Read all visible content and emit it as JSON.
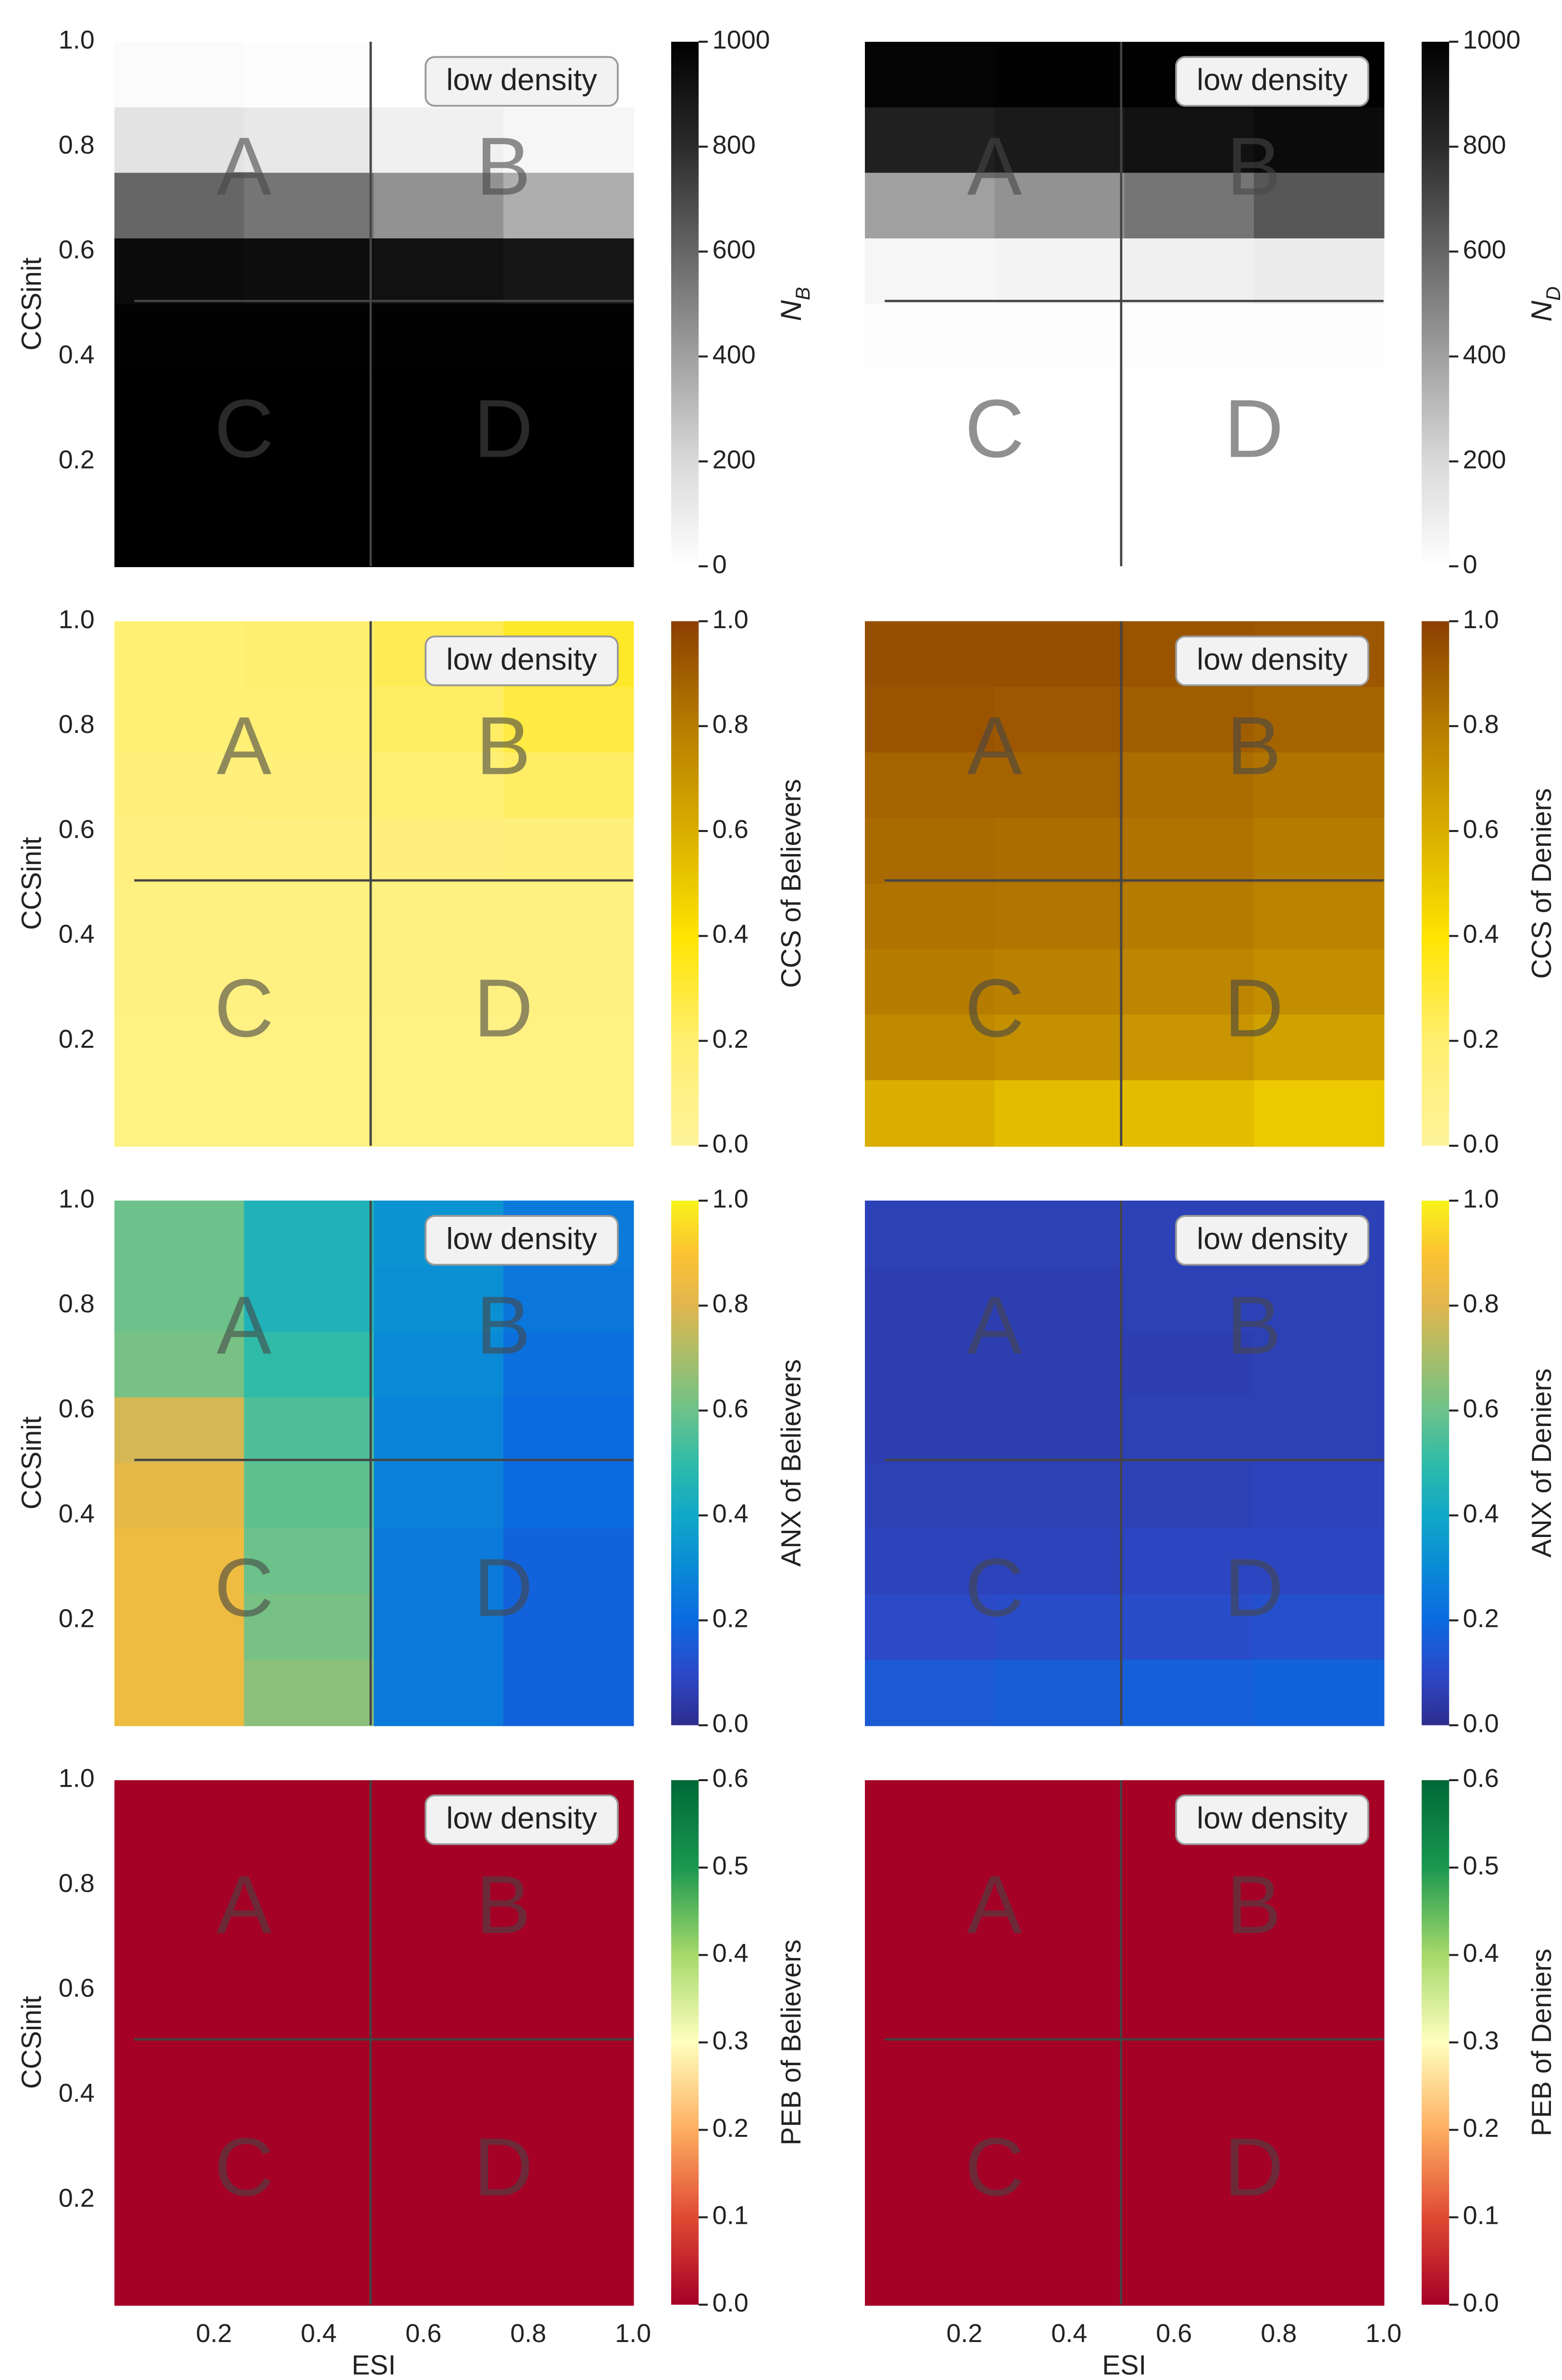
{
  "chart_data": [
    {
      "type": "heatmap",
      "annotation": "low density",
      "regions": [
        "A",
        "B",
        "C",
        "D"
      ],
      "ylabel": "CCSinit",
      "xlim": [
        0.01,
        1
      ],
      "ylim": [
        0,
        1
      ],
      "yticks": [
        0.2,
        0.4,
        0.6,
        0.8,
        {
          "value": 1,
          "label": "1.0"
        }
      ],
      "clim": [
        0,
        1000
      ],
      "cticks": [
        0,
        200,
        400,
        600,
        800,
        1000
      ],
      "colorbar_label": {
        "text": "N",
        "sub": "B"
      },
      "colormap": [
        "#ffffff",
        "#d9d9d9",
        "#a0a0a0",
        "#666666",
        "#2b2b2b",
        "#000000"
      ],
      "values": [
        [
          20,
          10,
          5,
          5
        ],
        [
          150,
          120,
          80,
          50
        ],
        [
          600,
          550,
          450,
          350
        ],
        [
          950,
          940,
          920,
          900
        ],
        [
          990,
          990,
          990,
          990
        ],
        [
          1000,
          1000,
          1000,
          1000
        ],
        [
          1000,
          1000,
          1000,
          1000
        ],
        [
          1000,
          1000,
          1000,
          1000
        ]
      ]
    },
    {
      "type": "heatmap",
      "annotation": "low density",
      "regions": [
        "A",
        "B",
        "C",
        "D"
      ],
      "xlim": [
        0.01,
        1
      ],
      "ylim": [
        0,
        1
      ],
      "clim": [
        0,
        1000
      ],
      "cticks": [
        0,
        200,
        400,
        600,
        800,
        1000
      ],
      "colorbar_label": {
        "text": "N",
        "sub": "D"
      },
      "colormap": [
        "#ffffff",
        "#d9d9d9",
        "#a0a0a0",
        "#666666",
        "#2b2b2b",
        "#000000"
      ],
      "values": [
        [
          980,
          990,
          995,
          995
        ],
        [
          850,
          880,
          920,
          950
        ],
        [
          400,
          450,
          550,
          650
        ],
        [
          50,
          60,
          80,
          100
        ],
        [
          10,
          10,
          10,
          10
        ],
        [
          0,
          0,
          0,
          0
        ],
        [
          0,
          0,
          0,
          0
        ],
        [
          0,
          0,
          0,
          0
        ]
      ]
    },
    {
      "type": "heatmap",
      "annotation": "low density",
      "regions": [
        "A",
        "B",
        "C",
        "D"
      ],
      "ylabel": "CCSinit",
      "xlim": [
        0.01,
        1
      ],
      "ylim": [
        0,
        1
      ],
      "yticks": [
        0.2,
        0.4,
        0.6,
        0.8,
        {
          "value": 1,
          "label": "1.0"
        }
      ],
      "clim": [
        0,
        1
      ],
      "cticks": [
        {
          "value": 0,
          "label": "0.0"
        },
        0.2,
        0.4,
        0.6,
        0.8,
        {
          "value": 1,
          "label": "1.0"
        }
      ],
      "colorbar_label": "CCS of Believers",
      "colormap": [
        "#fff39b",
        "#ffef70",
        "#ffe400",
        "#d9ae00",
        "#b67c00",
        "#8b3f00"
      ],
      "values": [
        [
          0.17,
          0.2,
          0.25,
          0.33
        ],
        [
          0.17,
          0.18,
          0.22,
          0.28
        ],
        [
          0.15,
          0.16,
          0.18,
          0.22
        ],
        [
          0.13,
          0.13,
          0.14,
          0.15
        ],
        [
          0.12,
          0.12,
          0.12,
          0.12
        ],
        [
          0.12,
          0.12,
          0.12,
          0.12
        ],
        [
          0.11,
          0.11,
          0.11,
          0.11
        ],
        [
          0.11,
          0.11,
          0.11,
          0.11
        ]
      ]
    },
    {
      "type": "heatmap",
      "annotation": "low density",
      "regions": [
        "A",
        "B",
        "C",
        "D"
      ],
      "xlim": [
        0.01,
        1
      ],
      "ylim": [
        0,
        1
      ],
      "clim": [
        0,
        1
      ],
      "cticks": [
        {
          "value": 0,
          "label": "0.0"
        },
        0.2,
        0.4,
        0.6,
        0.8,
        {
          "value": 1,
          "label": "1.0"
        }
      ],
      "colorbar_label": "CCS of Deniers",
      "colormap": [
        "#fff39b",
        "#ffef70",
        "#ffe400",
        "#d9ae00",
        "#b67c00",
        "#8b3f00"
      ],
      "values": [
        [
          0.95,
          0.95,
          0.93,
          0.92
        ],
        [
          0.93,
          0.92,
          0.9,
          0.88
        ],
        [
          0.88,
          0.88,
          0.85,
          0.83
        ],
        [
          0.86,
          0.85,
          0.83,
          0.8
        ],
        [
          0.83,
          0.82,
          0.8,
          0.77
        ],
        [
          0.8,
          0.78,
          0.76,
          0.73
        ],
        [
          0.75,
          0.72,
          0.7,
          0.65
        ],
        [
          0.6,
          0.55,
          0.55,
          0.5
        ]
      ]
    },
    {
      "type": "heatmap",
      "annotation": "low density",
      "regions": [
        "A",
        "B",
        "C",
        "D"
      ],
      "ylabel": "CCSinit",
      "xlim": [
        0.01,
        1
      ],
      "ylim": [
        0,
        1
      ],
      "yticks": [
        0.2,
        0.4,
        0.6,
        0.8,
        {
          "value": 1,
          "label": "1.0"
        }
      ],
      "clim": [
        0,
        1
      ],
      "cticks": [
        {
          "value": 0,
          "label": "0.0"
        },
        0.2,
        0.4,
        0.6,
        0.8,
        {
          "value": 1,
          "label": "1.0"
        }
      ],
      "colorbar_label": "ANX of Believers",
      "colormap": [
        "#2e2d8e",
        "#2c49c8",
        "#0b6ae0",
        "#0a8ad6",
        "#10a8c8",
        "#2fbba8",
        "#6cc28a",
        "#a8bd6a",
        "#e0b64e",
        "#fcc232",
        "#f7f41a"
      ],
      "values": [
        [
          0.6,
          0.45,
          0.33,
          0.25
        ],
        [
          0.6,
          0.45,
          0.32,
          0.24
        ],
        [
          0.62,
          0.5,
          0.3,
          0.22
        ],
        [
          0.78,
          0.55,
          0.28,
          0.2
        ],
        [
          0.82,
          0.58,
          0.27,
          0.2
        ],
        [
          0.85,
          0.6,
          0.25,
          0.18
        ],
        [
          0.85,
          0.62,
          0.25,
          0.18
        ],
        [
          0.85,
          0.65,
          0.25,
          0.18
        ]
      ]
    },
    {
      "type": "heatmap",
      "annotation": "low density",
      "regions": [
        "A",
        "B",
        "C",
        "D"
      ],
      "xlim": [
        0.01,
        1
      ],
      "ylim": [
        0,
        1
      ],
      "clim": [
        0,
        1
      ],
      "cticks": [
        {
          "value": 0,
          "label": "0.0"
        },
        0.2,
        0.4,
        0.6,
        0.8,
        {
          "value": 1,
          "label": "1.0"
        }
      ],
      "colorbar_label": "ANX of Deniers",
      "colormap": [
        "#2e2d8e",
        "#2c49c8",
        "#0b6ae0",
        "#0a8ad6",
        "#10a8c8",
        "#2fbba8",
        "#6cc28a",
        "#a8bd6a",
        "#e0b64e",
        "#fcc232",
        "#f7f41a"
      ],
      "values": [
        [
          0.07,
          0.07,
          0.07,
          0.07
        ],
        [
          0.06,
          0.06,
          0.07,
          0.07
        ],
        [
          0.06,
          0.06,
          0.06,
          0.07
        ],
        [
          0.06,
          0.06,
          0.07,
          0.07
        ],
        [
          0.07,
          0.07,
          0.07,
          0.08
        ],
        [
          0.08,
          0.08,
          0.09,
          0.09
        ],
        [
          0.1,
          0.11,
          0.11,
          0.12
        ],
        [
          0.15,
          0.16,
          0.17,
          0.18
        ]
      ]
    },
    {
      "type": "heatmap",
      "annotation": "low density",
      "regions": [
        "A",
        "B",
        "C",
        "D"
      ],
      "ylabel": "CCSinit",
      "xlabel": "ESI",
      "xlim": [
        0.01,
        1
      ],
      "ylim": [
        0,
        1
      ],
      "yticks": [
        0.2,
        0.4,
        0.6,
        0.8,
        {
          "value": 1,
          "label": "1.0"
        }
      ],
      "xticks": [
        0.2,
        0.4,
        0.6,
        0.8,
        {
          "value": 1,
          "label": "1.0"
        }
      ],
      "clim": [
        0,
        0.6
      ],
      "cticks": [
        {
          "value": 0,
          "label": "0.0"
        },
        0.1,
        0.2,
        0.3,
        0.4,
        0.5,
        0.6
      ],
      "colorbar_label": "PEB of Believers",
      "colormap": [
        "#a50026",
        "#e04a33",
        "#fdae61",
        "#ffffbf",
        "#a6d96a",
        "#1a9850",
        "#006837"
      ],
      "values": [
        [
          0,
          0,
          0,
          0
        ],
        [
          0,
          0,
          0,
          0
        ],
        [
          0,
          0,
          0,
          0
        ],
        [
          0,
          0,
          0,
          0
        ],
        [
          0,
          0,
          0,
          0
        ],
        [
          0,
          0,
          0,
          0
        ],
        [
          0,
          0,
          0,
          0
        ],
        [
          0,
          0,
          0,
          0
        ]
      ]
    },
    {
      "type": "heatmap",
      "annotation": "low density",
      "regions": [
        "A",
        "B",
        "C",
        "D"
      ],
      "xlabel": "ESI",
      "xlim": [
        0.01,
        1
      ],
      "ylim": [
        0,
        1
      ],
      "xticks": [
        0.2,
        0.4,
        0.6,
        0.8,
        {
          "value": 1,
          "label": "1.0"
        }
      ],
      "clim": [
        0,
        0.6
      ],
      "cticks": [
        {
          "value": 0,
          "label": "0.0"
        },
        0.1,
        0.2,
        0.3,
        0.4,
        0.5,
        0.6
      ],
      "colorbar_label": "PEB of Deniers",
      "colormap": [
        "#a50026",
        "#e04a33",
        "#fdae61",
        "#ffffbf",
        "#a6d96a",
        "#1a9850",
        "#006837"
      ],
      "values": [
        [
          0,
          0,
          0,
          0
        ],
        [
          0,
          0,
          0,
          0
        ],
        [
          0,
          0,
          0,
          0
        ],
        [
          0,
          0,
          0,
          0
        ],
        [
          0,
          0,
          0,
          0
        ],
        [
          0,
          0,
          0,
          0
        ],
        [
          0,
          0,
          0,
          0
        ],
        [
          0,
          0,
          0,
          0
        ]
      ]
    }
  ]
}
